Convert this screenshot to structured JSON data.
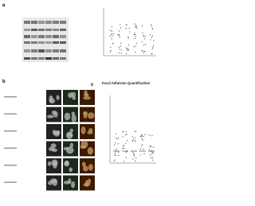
{
  "panels": [
    {
      "label": "a"
    },
    {
      "label": "b"
    },
    {
      "label": "c",
      "title": "Focal Adhesion Quantification"
    }
  ]
}
